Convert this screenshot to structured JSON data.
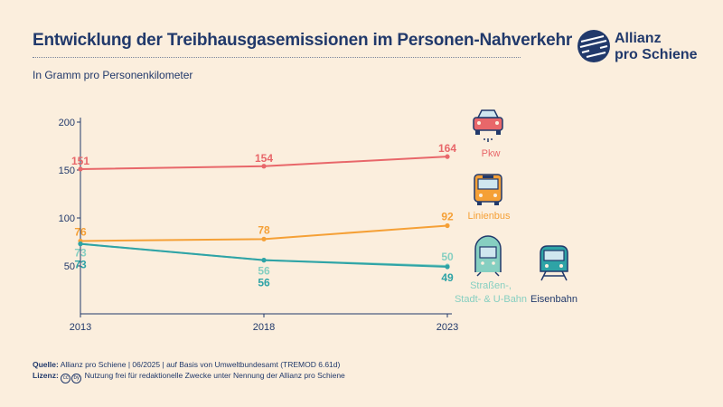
{
  "title": "Entwicklung der Treibhausgasemissionen im Personen-Nahverkehr",
  "subtitle": "In Gramm pro Personenkilometer",
  "logo": {
    "line1": "Allianz",
    "line2": "pro Schiene"
  },
  "footer": {
    "source_label": "Quelle:",
    "source_text": "Allianz pro Schiene | 06/2025 | auf Basis von Umweltbundesamt (TREMOD 6.61d)",
    "license_label": "Lizenz:",
    "license_text": "Nutzung frei für redaktionelle Zwecke unter Nennung der Allianz pro Schiene",
    "cc_icon_1": "cc",
    "cc_icon_2": "by"
  },
  "colors": {
    "background": "#fbeedd",
    "pkw": "#e8676a",
    "bus": "#f5a036",
    "tram": "#86cfc1",
    "rail": "#2ea3a6",
    "text_dark": "#21396b"
  },
  "chart_data": {
    "type": "line",
    "categories": [
      "2013",
      "2018",
      "2023"
    ],
    "yticks": [
      50,
      100,
      150,
      200
    ],
    "ylim": [
      0,
      200
    ],
    "series": [
      {
        "name": "Pkw",
        "values": [
          151,
          154,
          164
        ],
        "color": "#e8676a",
        "icon": "car-icon",
        "labels": [
          "151",
          "154",
          "164"
        ]
      },
      {
        "name": "Linienbus",
        "values": [
          76,
          78,
          92
        ],
        "color": "#f5a036",
        "icon": "bus-icon",
        "labels": [
          "76",
          "78",
          "92"
        ]
      },
      {
        "name": "Straßen-, Stadt- & U-Bahn",
        "values": [
          73,
          56,
          50
        ],
        "color": "#86cfc1",
        "icon": "tram-icon",
        "labels": [
          "73",
          "56",
          "50"
        ]
      },
      {
        "name": "Eisenbahn",
        "values": [
          73,
          56,
          49
        ],
        "color": "#2ea3a6",
        "icon": "train-icon",
        "labels": [
          "73",
          "56",
          "49"
        ]
      }
    ],
    "legend": [
      {
        "label": "Pkw"
      },
      {
        "label": "Linienbus"
      },
      {
        "label": "Straßen-,",
        "label2": "Stadt- & U-Bahn"
      },
      {
        "label": "Eisenbahn"
      }
    ]
  }
}
